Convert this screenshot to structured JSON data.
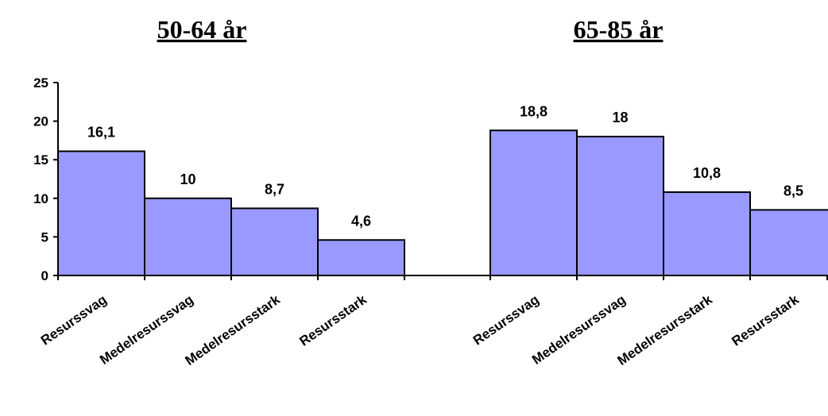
{
  "chart_data": {
    "type": "bar",
    "ylim": [
      0,
      25
    ],
    "yticks": [
      0,
      5,
      10,
      15,
      20,
      25
    ],
    "bar_color": "#9999ff",
    "groups": [
      {
        "title": "50-64 år",
        "categories": [
          "Resurssvag",
          "Medelresurssvag",
          "Medelresursstark",
          "Resursstark"
        ],
        "values": [
          16.1,
          10,
          8.7,
          4.6
        ],
        "labels": [
          "16,1",
          "10",
          "8,7",
          "4,6"
        ]
      },
      {
        "title": "65-85 år",
        "categories": [
          "Resurssvag",
          "Medelresurssvag",
          "Medelresursstark",
          "Resursstark"
        ],
        "values": [
          18.8,
          18,
          10.8,
          8.5
        ],
        "labels": [
          "18,8",
          "18",
          "10,8",
          "8,5"
        ]
      }
    ]
  }
}
